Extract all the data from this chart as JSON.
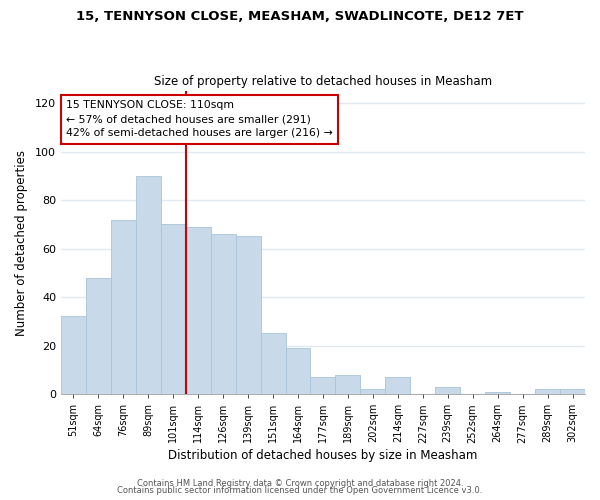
{
  "title": "15, TENNYSON CLOSE, MEASHAM, SWADLINCOTE, DE12 7ET",
  "subtitle": "Size of property relative to detached houses in Measham",
  "xlabel": "Distribution of detached houses by size in Measham",
  "ylabel": "Number of detached properties",
  "bar_color": "#c8daea",
  "bar_edge_color": "#a8c4da",
  "bin_labels": [
    "51sqm",
    "64sqm",
    "76sqm",
    "89sqm",
    "101sqm",
    "114sqm",
    "126sqm",
    "139sqm",
    "151sqm",
    "164sqm",
    "177sqm",
    "189sqm",
    "202sqm",
    "214sqm",
    "227sqm",
    "239sqm",
    "252sqm",
    "264sqm",
    "277sqm",
    "289sqm",
    "302sqm"
  ],
  "bar_values": [
    32,
    48,
    72,
    90,
    70,
    69,
    66,
    65,
    25,
    19,
    7,
    8,
    2,
    7,
    0,
    3,
    0,
    1,
    0,
    2,
    2
  ],
  "vline_color": "#cc0000",
  "annotation_title": "15 TENNYSON CLOSE: 110sqm",
  "annotation_line1": "← 57% of detached houses are smaller (291)",
  "annotation_line2": "42% of semi-detached houses are larger (216) →",
  "annotation_box_color": "#ffffff",
  "annotation_box_edge": "#cc0000",
  "ylim": [
    0,
    125
  ],
  "yticks": [
    0,
    20,
    40,
    60,
    80,
    100,
    120
  ],
  "footer1": "Contains HM Land Registry data © Crown copyright and database right 2024.",
  "footer2": "Contains public sector information licensed under the Open Government Licence v3.0.",
  "background_color": "#ffffff",
  "grid_color": "#e0e8f0",
  "title_fontsize": 9.5,
  "subtitle_fontsize": 8.5
}
